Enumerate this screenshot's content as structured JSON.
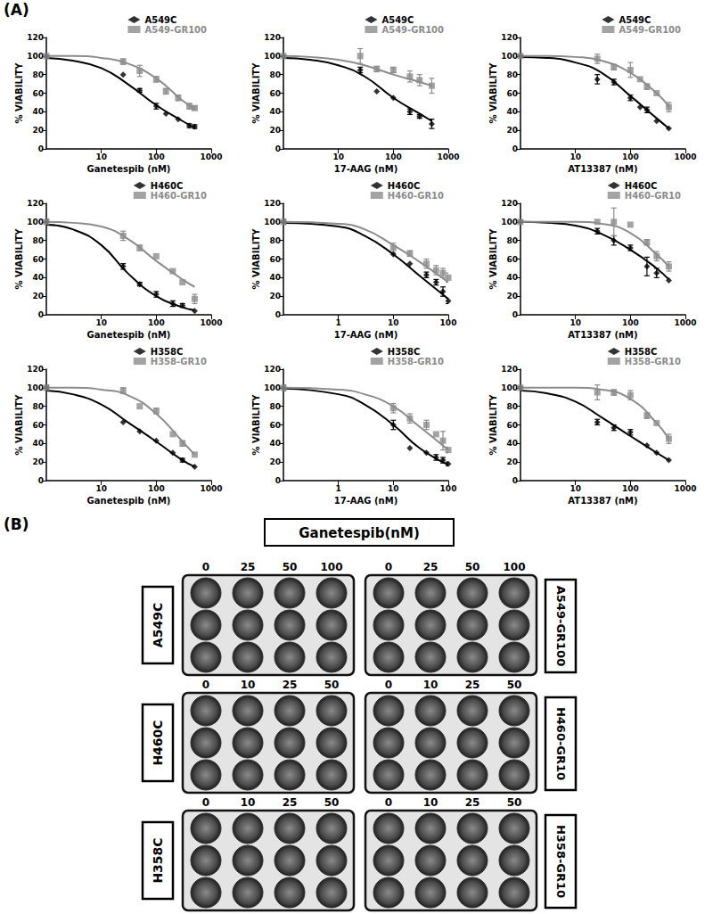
{
  "panel_labels": {
    "A": "(A)",
    "B": "(B)"
  },
  "chart_data": [
    {
      "type": "line",
      "x_label": "Ganetespib (nM)",
      "y_label": "% VIABILITY",
      "log": "x",
      "grid": false,
      "legend": "upper right",
      "xlim": [
        1,
        1000
      ],
      "xticks": [
        10,
        100,
        1000
      ],
      "ylim": [
        0,
        120
      ],
      "yticks": [
        0,
        20,
        40,
        60,
        80,
        100,
        120
      ],
      "x": [
        1,
        25,
        50,
        100,
        150,
        250,
        400,
        500
      ],
      "fit_x": [
        1,
        3,
        10,
        30,
        100,
        300,
        500
      ],
      "series": [
        {
          "name": "A549C",
          "color": "#000000",
          "marker": "diamond",
          "values": [
            100,
            80,
            63,
            46,
            38,
            32,
            25,
            24
          ],
          "errors": [
            0,
            0,
            2,
            3,
            0,
            0,
            2,
            2
          ],
          "fit": [
            98,
            95,
            87,
            70,
            47,
            30,
            23
          ]
        },
        {
          "name": "A549-GR100",
          "color": "#8c8c8c",
          "marker": "square",
          "values": [
            100,
            94,
            84,
            75,
            62,
            55,
            46,
            44
          ],
          "errors": [
            0,
            3,
            6,
            3,
            3,
            3,
            3,
            2
          ],
          "fit": [
            100,
            100,
            98,
            92,
            76,
            52,
            43
          ]
        }
      ]
    },
    {
      "type": "line",
      "x_label": "17-AAG (nM)",
      "y_label": "% VIABILITY",
      "log": "x",
      "grid": false,
      "legend": "upper right",
      "xlim": [
        1,
        1000
      ],
      "xticks": [
        10,
        100,
        1000
      ],
      "ylim": [
        0,
        120
      ],
      "yticks": [
        0,
        20,
        40,
        60,
        80,
        100,
        120
      ],
      "x": [
        1,
        25,
        50,
        100,
        200,
        300,
        500
      ],
      "fit_x": [
        1,
        3,
        10,
        30,
        100,
        300,
        500
      ],
      "series": [
        {
          "name": "A549C",
          "color": "#000000",
          "marker": "diamond",
          "values": [
            100,
            85,
            62,
            55,
            40,
            35,
            27
          ],
          "errors": [
            0,
            3,
            0,
            0,
            3,
            2,
            5
          ],
          "fit": [
            98,
            96,
            90,
            78,
            55,
            38,
            30
          ]
        },
        {
          "name": "A549-GR100",
          "color": "#8c8c8c",
          "marker": "square",
          "values": [
            100,
            100,
            86,
            85,
            78,
            74,
            68
          ],
          "errors": [
            0,
            8,
            3,
            3,
            6,
            6,
            8
          ],
          "fit": [
            100,
            99,
            96,
            90,
            80,
            72,
            68
          ]
        }
      ]
    },
    {
      "type": "line",
      "x_label": "AT13387 (nM)",
      "y_label": "% VIABILITY",
      "log": "x",
      "grid": false,
      "legend": "upper right",
      "xlim": [
        1,
        1000
      ],
      "xticks": [
        10,
        100,
        1000
      ],
      "ylim": [
        0,
        120
      ],
      "yticks": [
        0,
        20,
        40,
        60,
        80,
        100,
        120
      ],
      "x": [
        1,
        25,
        50,
        100,
        150,
        200,
        300,
        500
      ],
      "fit_x": [
        1,
        3,
        10,
        30,
        100,
        300,
        500
      ],
      "series": [
        {
          "name": "A549C",
          "color": "#000000",
          "marker": "diamond",
          "values": [
            100,
            75,
            72,
            55,
            45,
            42,
            30,
            22
          ],
          "errors": [
            0,
            5,
            3,
            3,
            0,
            3,
            0,
            0
          ],
          "fit": [
            99,
            98,
            93,
            82,
            57,
            33,
            22
          ]
        },
        {
          "name": "A549-GR100",
          "color": "#8c8c8c",
          "marker": "square",
          "values": [
            100,
            97,
            88,
            85,
            75,
            67,
            60,
            45
          ],
          "errors": [
            0,
            5,
            3,
            8,
            0,
            3,
            0,
            5
          ],
          "fit": [
            100,
            100,
            99,
            95,
            82,
            60,
            46
          ]
        }
      ]
    },
    {
      "type": "line",
      "x_label": "Ganetespib (nM)",
      "y_label": "% VIABILITY",
      "log": "x",
      "grid": false,
      "legend": "upper right",
      "xlim": [
        1,
        1000
      ],
      "xticks": [
        10,
        100,
        1000
      ],
      "ylim": [
        0,
        120
      ],
      "yticks": [
        0,
        20,
        40,
        60,
        80,
        100,
        120
      ],
      "x": [
        1,
        25,
        50,
        100,
        200,
        300,
        500
      ],
      "fit_x": [
        1,
        3,
        10,
        30,
        100,
        300,
        500
      ],
      "series": [
        {
          "name": "H460C",
          "color": "#000000",
          "marker": "diamond",
          "values": [
            100,
            52,
            33,
            22,
            12,
            10,
            4
          ],
          "errors": [
            3,
            3,
            2,
            3,
            3,
            2,
            0
          ],
          "fit": [
            97,
            92,
            75,
            45,
            20,
            8,
            5
          ]
        },
        {
          "name": "H460-GR10",
          "color": "#8c8c8c",
          "marker": "square",
          "values": [
            100,
            85,
            72,
            63,
            47,
            35,
            17
          ],
          "errors": [
            3,
            5,
            3,
            0,
            0,
            0,
            5
          ],
          "fit": [
            100,
            99,
            95,
            82,
            58,
            38,
            30
          ]
        }
      ]
    },
    {
      "type": "line",
      "x_label": "17-AAG (nM)",
      "y_label": "% VIABILITY",
      "log": "x",
      "grid": false,
      "legend": "upper right",
      "xlim": [
        0.1,
        100
      ],
      "xticks": [
        1,
        10,
        100
      ],
      "ylim": [
        0,
        120
      ],
      "yticks": [
        0,
        20,
        40,
        60,
        80,
        100,
        120
      ],
      "x": [
        0.1,
        10,
        20,
        40,
        60,
        80,
        100
      ],
      "fit_x": [
        0.1,
        1,
        3,
        10,
        30,
        100
      ],
      "series": [
        {
          "name": "H460C",
          "color": "#000000",
          "marker": "diamond",
          "values": [
            100,
            65,
            55,
            43,
            35,
            25,
            15
          ],
          "errors": [
            2,
            0,
            0,
            3,
            3,
            5,
            3
          ],
          "fit": [
            99,
            95,
            85,
            65,
            42,
            17
          ]
        },
        {
          "name": "H460-GR10",
          "color": "#8c8c8c",
          "marker": "square",
          "values": [
            100,
            72,
            66,
            55,
            48,
            45,
            40
          ],
          "errors": [
            3,
            5,
            3,
            5,
            5,
            5,
            5
          ],
          "fit": [
            100,
            98,
            92,
            75,
            57,
            35
          ]
        }
      ]
    },
    {
      "type": "line",
      "x_label": "AT13387 (nM)",
      "y_label": "% VIABILITY",
      "log": "x",
      "grid": false,
      "legend": "upper right",
      "xlim": [
        1,
        1000
      ],
      "xticks": [
        10,
        100,
        1000
      ],
      "ylim": [
        0,
        120
      ],
      "yticks": [
        0,
        20,
        40,
        60,
        80,
        100,
        120
      ],
      "x": [
        1,
        25,
        50,
        100,
        200,
        300,
        500
      ],
      "fit_x": [
        1,
        3,
        10,
        30,
        100,
        300,
        500
      ],
      "series": [
        {
          "name": "H460C",
          "color": "#000000",
          "marker": "diamond",
          "values": [
            100,
            90,
            80,
            72,
            52,
            45,
            37
          ],
          "errors": [
            0,
            3,
            5,
            3,
            10,
            5,
            0
          ],
          "fit": [
            100,
            99,
            96,
            87,
            70,
            50,
            38
          ]
        },
        {
          "name": "H460-GR10",
          "color": "#8c8c8c",
          "marker": "square",
          "values": [
            100,
            100,
            100,
            97,
            78,
            63,
            52
          ],
          "errors": [
            0,
            0,
            15,
            0,
            3,
            5,
            5
          ],
          "fit": [
            100,
            100,
            100,
            98,
            88,
            65,
            52
          ]
        }
      ]
    },
    {
      "type": "line",
      "x_label": "Ganetespib (nM)",
      "y_label": "% VIABILITY",
      "log": "x",
      "grid": false,
      "legend": "upper right",
      "xlim": [
        1,
        1000
      ],
      "xticks": [
        10,
        100,
        1000
      ],
      "ylim": [
        0,
        120
      ],
      "yticks": [
        0,
        20,
        40,
        60,
        80,
        100,
        120
      ],
      "x": [
        1,
        25,
        50,
        100,
        200,
        300,
        500
      ],
      "fit_x": [
        1,
        3,
        10,
        30,
        100,
        300,
        500
      ],
      "series": [
        {
          "name": "H358C",
          "color": "#000000",
          "marker": "diamond",
          "values": [
            100,
            63,
            53,
            43,
            30,
            22,
            15
          ],
          "errors": [
            2,
            0,
            0,
            0,
            0,
            2,
            0
          ],
          "fit": [
            97,
            93,
            82,
            63,
            42,
            22,
            15
          ]
        },
        {
          "name": "H358-GR10",
          "color": "#8c8c8c",
          "marker": "square",
          "values": [
            100,
            97,
            80,
            75,
            50,
            40,
            28
          ],
          "errors": [
            3,
            3,
            0,
            3,
            0,
            3,
            0
          ],
          "fit": [
            100,
            100,
            98,
            92,
            72,
            42,
            28
          ]
        }
      ]
    },
    {
      "type": "line",
      "x_label": "17-AAG (nM)",
      "y_label": "% VIABILITY",
      "log": "x",
      "grid": false,
      "legend": "upper right",
      "xlim": [
        0.1,
        100
      ],
      "xticks": [
        1,
        10,
        100
      ],
      "ylim": [
        0,
        120
      ],
      "yticks": [
        0,
        20,
        40,
        60,
        80,
        100,
        120
      ],
      "x": [
        0.1,
        10,
        20,
        40,
        60,
        80,
        100
      ],
      "fit_x": [
        0.1,
        1,
        3,
        10,
        30,
        100
      ],
      "series": [
        {
          "name": "H358C",
          "color": "#000000",
          "marker": "diamond",
          "values": [
            100,
            60,
            35,
            30,
            25,
            22,
            18
          ],
          "errors": [
            3,
            5,
            0,
            0,
            3,
            3,
            2
          ],
          "fit": [
            99,
            93,
            82,
            60,
            35,
            17
          ]
        },
        {
          "name": "H358-GR10",
          "color": "#8c8c8c",
          "marker": "square",
          "values": [
            100,
            78,
            67,
            60,
            50,
            43,
            33
          ],
          "errors": [
            3,
            5,
            5,
            5,
            0,
            10,
            3
          ],
          "fit": [
            100,
            98,
            93,
            80,
            58,
            33
          ]
        }
      ]
    },
    {
      "type": "line",
      "x_label": "AT13387 (nM)",
      "y_label": "% VIABILITY",
      "log": "x",
      "grid": false,
      "legend": "upper right",
      "xlim": [
        1,
        1000
      ],
      "xticks": [
        10,
        100,
        1000
      ],
      "ylim": [
        0,
        120
      ],
      "yticks": [
        0,
        20,
        40,
        60,
        80,
        100,
        120
      ],
      "x": [
        1,
        25,
        50,
        100,
        200,
        300,
        500
      ],
      "fit_x": [
        1,
        3,
        10,
        30,
        100,
        300,
        500
      ],
      "series": [
        {
          "name": "H358C",
          "color": "#000000",
          "marker": "diamond",
          "values": [
            100,
            63,
            57,
            52,
            38,
            30,
            22
          ],
          "errors": [
            0,
            3,
            3,
            3,
            0,
            0,
            0
          ],
          "fit": [
            97,
            94,
            85,
            68,
            48,
            30,
            22
          ]
        },
        {
          "name": "H358-GR10",
          "color": "#8c8c8c",
          "marker": "square",
          "values": [
            100,
            95,
            95,
            92,
            70,
            62,
            45
          ],
          "errors": [
            0,
            8,
            3,
            5,
            3,
            0,
            5
          ],
          "fit": [
            100,
            100,
            100,
            98,
            88,
            62,
            45
          ]
        }
      ]
    }
  ],
  "plates": {
    "title": "Ganetespib(nM)",
    "rows": [
      {
        "left": "A549C",
        "right": "A549-GR100",
        "doses": [
          0,
          25,
          50,
          100
        ]
      },
      {
        "left": "H460C",
        "right": "H460-GR10",
        "doses": [
          0,
          10,
          25,
          50
        ]
      },
      {
        "left": "H358C",
        "right": "H358-GR10",
        "doses": [
          0,
          10,
          25,
          50
        ]
      }
    ]
  }
}
